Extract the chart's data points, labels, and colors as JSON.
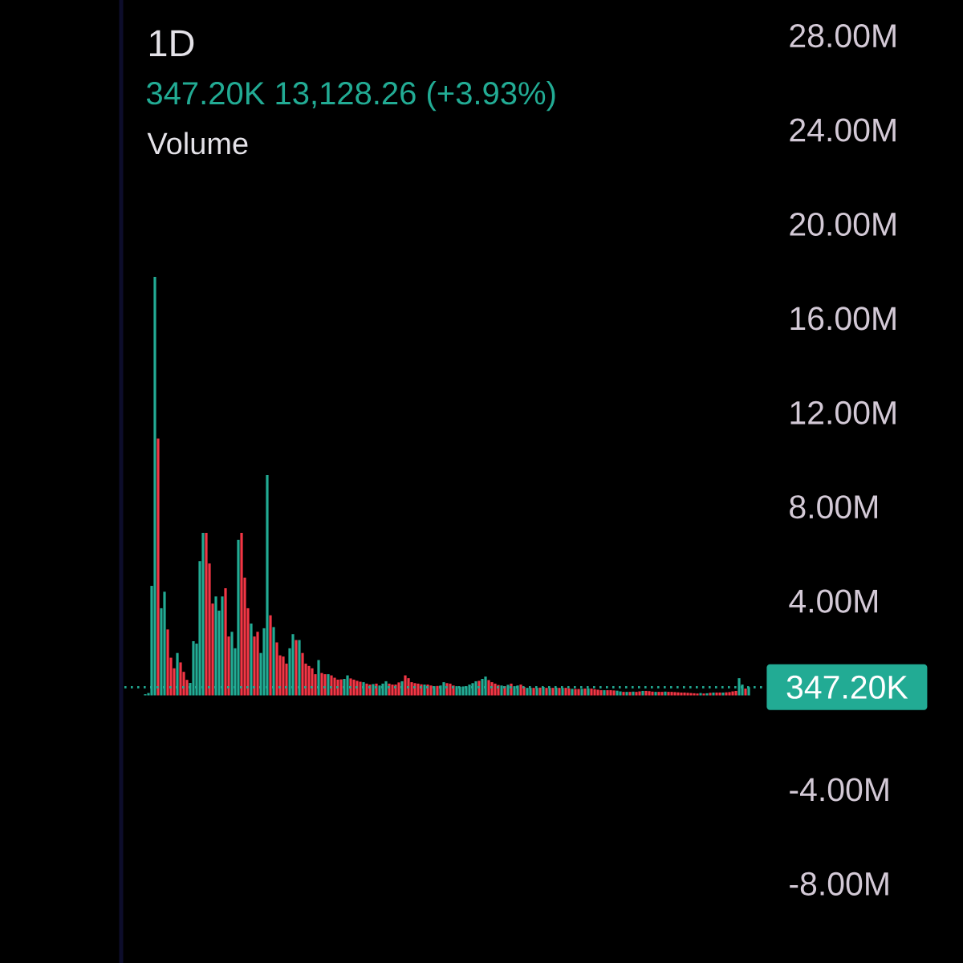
{
  "chart_data": {
    "type": "bar",
    "title": "1D",
    "subtitle": "347.20K 13,128.26 (+3.93%)",
    "ylabel": "Volume",
    "categories": [
      null,
      null,
      null,
      null,
      null,
      null,
      null,
      null,
      null,
      null,
      null,
      null,
      null,
      null,
      null,
      null,
      null,
      null,
      null,
      null,
      null,
      null,
      null,
      null,
      null,
      null,
      null,
      null,
      null,
      null,
      null,
      null,
      null,
      null,
      null,
      null,
      null,
      null,
      null,
      null,
      null,
      null,
      null,
      null,
      null,
      null,
      null,
      null,
      null,
      null,
      null,
      null,
      null,
      null,
      null,
      null,
      null,
      null,
      null,
      null,
      null,
      null,
      null,
      null,
      null,
      null,
      null,
      null,
      null,
      null,
      null,
      null,
      null,
      null,
      null,
      null,
      null,
      null,
      null,
      null,
      null,
      null,
      null,
      null,
      null,
      null,
      null,
      null,
      null,
      null,
      null,
      null,
      null,
      null,
      null,
      null,
      null,
      null,
      null,
      null,
      null,
      null,
      null,
      null,
      null,
      null,
      null,
      null,
      null,
      null,
      null,
      null,
      null,
      null,
      null,
      null,
      null,
      null,
      null,
      null,
      null,
      null,
      null,
      null,
      null,
      null,
      null,
      null,
      null,
      null,
      null,
      null,
      null,
      null,
      null,
      null,
      null,
      null,
      null,
      null,
      null,
      null,
      null,
      null,
      null,
      null,
      null,
      null,
      null,
      null,
      null,
      null,
      null,
      null,
      null,
      null,
      null,
      null,
      null,
      null,
      null,
      null,
      null,
      null,
      null,
      null,
      null,
      null,
      null,
      null,
      null,
      null,
      null,
      null,
      null,
      null,
      null,
      null,
      null,
      null,
      null,
      null,
      null,
      null,
      null,
      null,
      null,
      null,
      null,
      null,
      null,
      null,
      null,
      null,
      null,
      null,
      null,
      null,
      null
    ],
    "values": [
      null,
      null,
      null,
      null,
      null,
      null,
      0.05,
      0.1,
      4.65,
      17.77,
      10.9,
      3.7,
      4.4,
      2.8,
      1.6,
      1.15,
      1.8,
      1.4,
      1.0,
      0.66,
      0.53,
      2.3,
      2.2,
      5.7,
      6.9,
      6.9,
      5.6,
      3.9,
      4.2,
      3.6,
      4.2,
      4.55,
      2.5,
      2.7,
      2.0,
      6.6,
      6.9,
      5.0,
      3.7,
      3.05,
      2.5,
      2.7,
      1.8,
      2.85,
      9.35,
      3.4,
      2.9,
      2.25,
      1.7,
      1.65,
      1.35,
      2.0,
      2.6,
      2.35,
      2.35,
      1.8,
      1.35,
      1.25,
      1.15,
      0.9,
      1.5,
      0.95,
      0.9,
      0.9,
      0.85,
      0.75,
      0.67,
      0.68,
      0.7,
      0.85,
      0.72,
      0.67,
      0.62,
      0.58,
      0.56,
      0.5,
      0.46,
      0.48,
      0.5,
      0.42,
      0.5,
      0.6,
      0.5,
      0.46,
      0.46,
      0.55,
      0.6,
      0.85,
      0.73,
      0.56,
      0.52,
      0.5,
      0.47,
      0.46,
      0.46,
      0.42,
      0.39,
      0.4,
      0.42,
      0.56,
      0.52,
      0.5,
      0.42,
      0.39,
      0.36,
      0.38,
      0.39,
      0.46,
      0.52,
      0.6,
      0.62,
      0.7,
      0.8,
      0.65,
      0.56,
      0.5,
      0.44,
      0.42,
      0.39,
      0.45,
      0.5,
      0.39,
      0.42,
      0.46,
      0.36,
      0.32,
      0.32,
      0.32,
      0.32,
      0.33,
      0.36,
      0.32,
      0.32,
      0.32,
      0.33,
      0.32,
      0.32,
      0.32,
      0.3,
      0.28,
      0.27,
      0.27,
      0.28,
      0.29,
      0.3,
      0.29,
      0.26,
      0.24,
      0.22,
      0.22,
      0.22,
      0.22,
      0.21,
      0.2,
      0.17,
      0.15,
      0.15,
      0.15,
      0.16,
      0.15,
      0.17,
      0.19,
      0.19,
      0.18,
      0.16,
      0.15,
      0.15,
      0.15,
      0.16,
      0.15,
      0.15,
      0.14,
      0.13,
      0.12,
      0.12,
      0.11,
      0.1,
      0.09,
      0.08,
      0.1,
      0.08,
      0.09,
      0.11,
      0.12,
      0.12,
      0.12,
      0.12,
      0.13,
      0.14,
      0.17,
      0.19,
      0.73,
      0.46,
      0.29,
      0.35,
      null,
      null,
      null,
      null
    ],
    "colors": [
      null,
      null,
      null,
      null,
      null,
      null,
      "#22ab94",
      "#22ab94",
      "#22ab94",
      "#22ab94",
      "#f23645",
      "#22ab94",
      "#22ab94",
      "#f23645",
      "#f23645",
      "#f23645",
      "#22ab94",
      "#f23645",
      "#f23645",
      "#f23645",
      "#22ab94",
      "#22ab94",
      "#22ab94",
      "#22ab94",
      "#22ab94",
      "#f23645",
      "#f23645",
      "#f23645",
      "#22ab94",
      "#22ab94",
      "#22ab94",
      "#f23645",
      "#f23645",
      "#22ab94",
      "#22ab94",
      "#22ab94",
      "#f23645",
      "#f23645",
      "#f23645",
      "#22ab94",
      "#f23645",
      "#f23645",
      "#22ab94",
      "#22ab94",
      "#22ab94",
      "#f23645",
      "#22ab94",
      "#f23645",
      "#f23645",
      "#f23645",
      "#f23645",
      "#22ab94",
      "#22ab94",
      "#f23645",
      "#22ab94",
      "#f23645",
      "#f23645",
      "#f23645",
      "#f23645",
      "#f23645",
      "#22ab94",
      "#f23645",
      "#f23645",
      "#22ab94",
      "#f23645",
      "#f23645",
      "#f23645",
      "#f23645",
      "#22ab94",
      "#22ab94",
      "#f23645",
      "#f23645",
      "#f23645",
      "#f23645",
      "#22ab94",
      "#f23645",
      "#f23645",
      "#22ab94",
      "#f23645",
      "#22ab94",
      "#22ab94",
      "#22ab94",
      "#f23645",
      "#f23645",
      "#f23645",
      "#f23645",
      "#22ab94",
      "#f23645",
      "#f23645",
      "#f23645",
      "#f23645",
      "#f23645",
      "#f23645",
      "#22ab94",
      "#f23645",
      "#f23645",
      "#22ab94",
      "#f23645",
      "#22ab94",
      "#22ab94",
      "#f23645",
      "#f23645",
      "#f23645",
      "#22ab94",
      "#22ab94",
      "#22ab94",
      "#22ab94",
      "#22ab94",
      "#22ab94",
      "#22ab94",
      "#f23645",
      "#22ab94",
      "#22ab94",
      "#f23645",
      "#f23645",
      "#f23645",
      "#f23645",
      "#22ab94",
      "#f23645",
      "#22ab94",
      "#f23645",
      "#22ab94",
      "#22ab94",
      "#f23645",
      "#f23645",
      "#22ab94",
      "#22ab94",
      "#f23645",
      "#22ab94",
      "#f23645",
      "#22ab94",
      "#f23645",
      "#22ab94",
      "#f23645",
      "#22ab94",
      "#f23645",
      "#22ab94",
      "#f23645",
      "#f23645",
      "#22ab94",
      "#f23645",
      "#f23645",
      "#22ab94",
      "#f23645",
      "#22ab94",
      "#f23645",
      "#f23645",
      "#f23645",
      "#f23645",
      "#22ab94",
      "#f23645",
      "#f23645",
      "#f23645",
      "#22ab94",
      "#22ab94",
      "#f23645",
      "#22ab94",
      "#f23645",
      "#22ab94",
      "#f23645",
      "#f23645",
      "#22ab94",
      "#f23645",
      "#f23645",
      "#f23645",
      "#22ab94",
      "#f23645",
      "#f23645",
      "#22ab94",
      "#f23645",
      "#f23645",
      "#f23645",
      "#f23645",
      "#f23645",
      "#f23645",
      "#f23645",
      "#f23645",
      "#f23645",
      "#f23645",
      "#22ab94",
      "#f23645",
      "#22ab94",
      "#f23645",
      "#22ab94",
      "#f23645",
      "#f23645",
      "#22ab94",
      "#f23645",
      "#f23645",
      "#f23645",
      "#f23645",
      "#22ab94",
      "#22ab94",
      "#f23645",
      "#22ab94",
      null,
      null,
      null,
      null
    ],
    "ylim": [
      -11.36,
      29.52
    ],
    "yticks": [
      {
        "value": 28,
        "label": "28.00M"
      },
      {
        "value": 24,
        "label": "24.00M"
      },
      {
        "value": 20,
        "label": "20.00M"
      },
      {
        "value": 16,
        "label": "16.00M"
      },
      {
        "value": 12,
        "label": "12.00M"
      },
      {
        "value": 8,
        "label": "8.00M"
      },
      {
        "value": 4,
        "label": "4.00M"
      },
      {
        "value": -4,
        "label": "-4.00M"
      },
      {
        "value": -8,
        "label": "-8.00M"
      }
    ],
    "ref_lines": [
      {
        "axis": "y",
        "value": 0.3472,
        "label": "347.20K",
        "color": "#22ab94",
        "line_style": "dotted"
      }
    ]
  }
}
